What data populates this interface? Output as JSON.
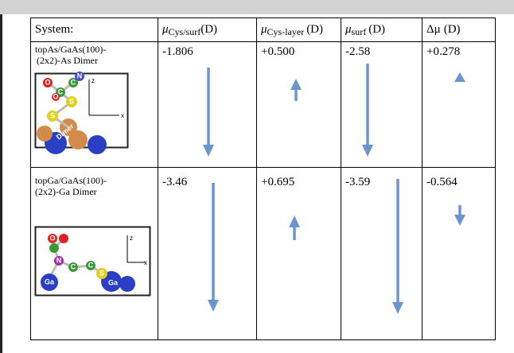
{
  "table": {
    "header": [
      {
        "text": "System:"
      },
      {
        "symbol": "μ",
        "sub": "Cys/surf",
        "unit": "(D)"
      },
      {
        "symbol": "μ",
        "sub": "Cys-layer",
        "unit": "(D)"
      },
      {
        "symbol": "μ",
        "sub": "surf",
        "unit": "(D)"
      },
      {
        "symbol": "Δμ",
        "unit": "(D)"
      }
    ],
    "rows": [
      {
        "system": [
          "topAs/GaAs(100)-",
          "(2x2)-As Dimer"
        ],
        "values": [
          "-1.806",
          "+0.500",
          "-2.58",
          "+0.278"
        ],
        "image": {
          "atoms": [
            "O",
            "N",
            "C",
            "O",
            "C",
            "S",
            "S",
            "Dimer"
          ],
          "axes": [
            "z",
            "x"
          ]
        }
      },
      {
        "system": [
          "topGa/GaAs(100)-",
          "(2x2)-Ga Dimer"
        ],
        "values": [
          "-3.46",
          "+0.695",
          "-3.59",
          "-0.564"
        ],
        "image": {
          "atoms": [
            "O",
            "N",
            "C",
            "C",
            "S",
            "Ga",
            "Ga"
          ],
          "axes": [
            "z",
            "x"
          ]
        }
      }
    ]
  }
}
